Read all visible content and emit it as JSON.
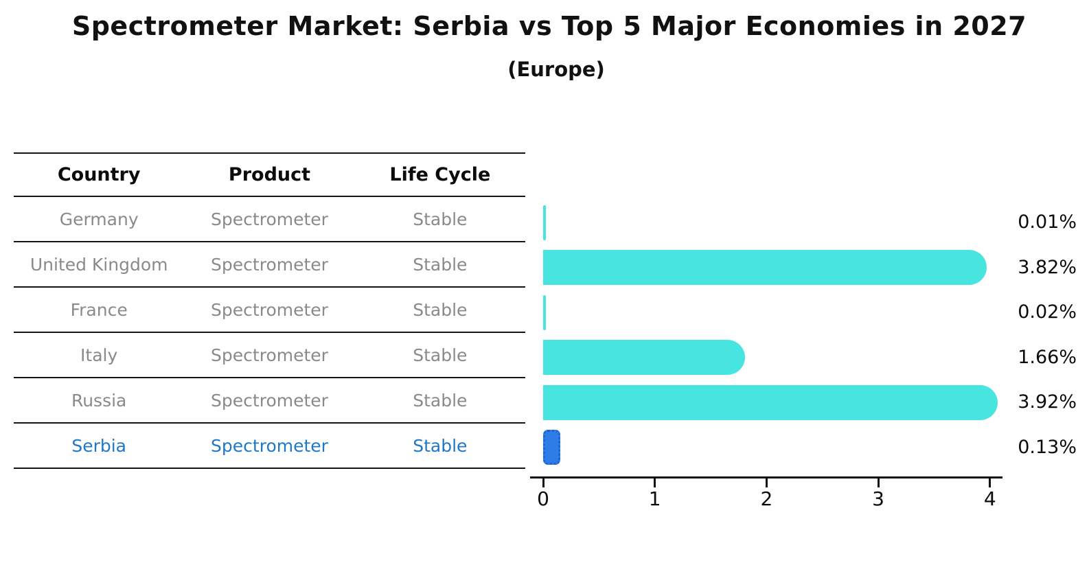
{
  "title": "Spectrometer Market: Serbia vs Top 5 Major Economies in 2027",
  "subtitle": "(Europe)",
  "table": {
    "headers": [
      "Country",
      "Product",
      "Life Cycle"
    ],
    "rows": [
      {
        "country": "Germany",
        "product": "Spectrometer",
        "life_cycle": "Stable",
        "highlight": false
      },
      {
        "country": "United Kingdom",
        "product": "Spectrometer",
        "life_cycle": "Stable",
        "highlight": false
      },
      {
        "country": "France",
        "product": "Spectrometer",
        "life_cycle": "Stable",
        "highlight": false
      },
      {
        "country": "Italy",
        "product": "Spectrometer",
        "life_cycle": "Stable",
        "highlight": false
      },
      {
        "country": "Russia",
        "product": "Spectrometer",
        "life_cycle": "Stable",
        "highlight": true
      }
    ],
    "highlight_row": {
      "country": "Serbia",
      "product": "Spectrometer",
      "life_cycle": "Stable"
    }
  },
  "chart_data": {
    "type": "bar",
    "orientation": "horizontal",
    "title": "Spectrometer Market: Serbia vs Top 5 Major Economies in 2027",
    "subtitle": "(Europe)",
    "categories": [
      "Germany",
      "United Kingdom",
      "France",
      "Italy",
      "Russia",
      "Serbia"
    ],
    "values": [
      0.01,
      3.82,
      0.02,
      1.66,
      3.92,
      0.13
    ],
    "value_labels": [
      "0.01%",
      "3.82%",
      "0.02%",
      "1.66%",
      "3.92%",
      "0.13%"
    ],
    "x_ticks": [
      "0",
      "1",
      "2",
      "3",
      "4"
    ],
    "xlim": [
      0,
      4.1
    ],
    "grid": false,
    "legend": false,
    "bar_color": "#48e5e0",
    "highlight_index": 5,
    "highlight_color": "#2e7ce6",
    "highlight_edge_color": "#1b63d4",
    "text_colors": {
      "row_gray": "#8a8a8a",
      "highlight_blue": "#1f77c8",
      "label_black": "#0b0b0b"
    }
  }
}
